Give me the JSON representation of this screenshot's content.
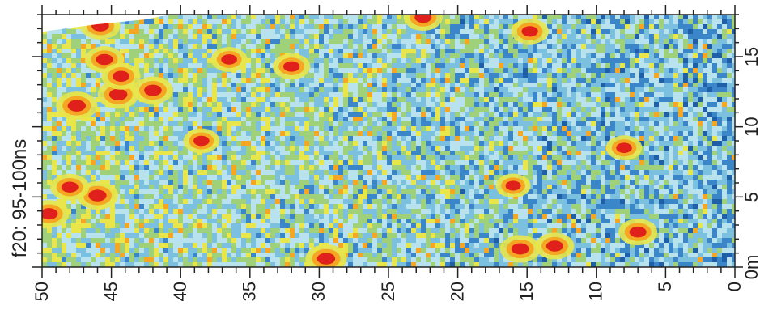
{
  "chart_data": {
    "type": "heatmap",
    "title": "",
    "ylabel": "f20: 95-100ns",
    "x_axis": {
      "range": [
        50,
        0
      ],
      "reversed": true,
      "major_ticks": [
        50,
        45,
        40,
        35,
        30,
        25,
        20,
        15,
        10,
        5,
        0
      ],
      "tick_labels": [
        "50",
        "45",
        "40",
        "35",
        "30",
        "25",
        "20",
        "15",
        "10",
        "5",
        "0"
      ],
      "minor_tick_step": 1
    },
    "y_axis": {
      "range": [
        0,
        18
      ],
      "side": "right",
      "major_ticks": [
        0,
        5,
        10,
        15
      ],
      "tick_labels": [
        "0m",
        "5",
        "10",
        "15"
      ],
      "minor_tick_step": 1
    },
    "colormap": [
      "#1e5fa8",
      "#3a86c8",
      "#7cc0e0",
      "#b8e2ee",
      "#9fd07a",
      "#e8e64a",
      "#f5a623",
      "#e0201b"
    ],
    "grid": false,
    "legend": "none",
    "hotspots": [
      {
        "x": 47.5,
        "y": 11.5,
        "intensity": 1.0
      },
      {
        "x": 44.5,
        "y": 12.3,
        "intensity": 1.0
      },
      {
        "x": 42.0,
        "y": 12.6,
        "intensity": 0.95
      },
      {
        "x": 45.5,
        "y": 14.8,
        "intensity": 0.9
      },
      {
        "x": 44.3,
        "y": 13.6,
        "intensity": 0.9
      },
      {
        "x": 45.8,
        "y": 17.2,
        "intensity": 0.95
      },
      {
        "x": 46.0,
        "y": 5.1,
        "intensity": 1.0
      },
      {
        "x": 48.0,
        "y": 5.7,
        "intensity": 0.9
      },
      {
        "x": 49.5,
        "y": 3.8,
        "intensity": 0.95
      },
      {
        "x": 38.5,
        "y": 9.0,
        "intensity": 0.8
      },
      {
        "x": 36.5,
        "y": 14.8,
        "intensity": 0.8
      },
      {
        "x": 32.0,
        "y": 14.3,
        "intensity": 0.85
      },
      {
        "x": 29.5,
        "y": 0.6,
        "intensity": 1.0
      },
      {
        "x": 22.5,
        "y": 17.8,
        "intensity": 0.9
      },
      {
        "x": 15.5,
        "y": 1.3,
        "intensity": 0.95
      },
      {
        "x": 13.0,
        "y": 1.5,
        "intensity": 0.9
      },
      {
        "x": 14.8,
        "y": 16.8,
        "intensity": 0.85
      },
      {
        "x": 7.0,
        "y": 2.5,
        "intensity": 0.9
      },
      {
        "x": 8.0,
        "y": 8.5,
        "intensity": 0.8
      },
      {
        "x": 16.0,
        "y": 5.8,
        "intensity": 0.75
      }
    ]
  }
}
